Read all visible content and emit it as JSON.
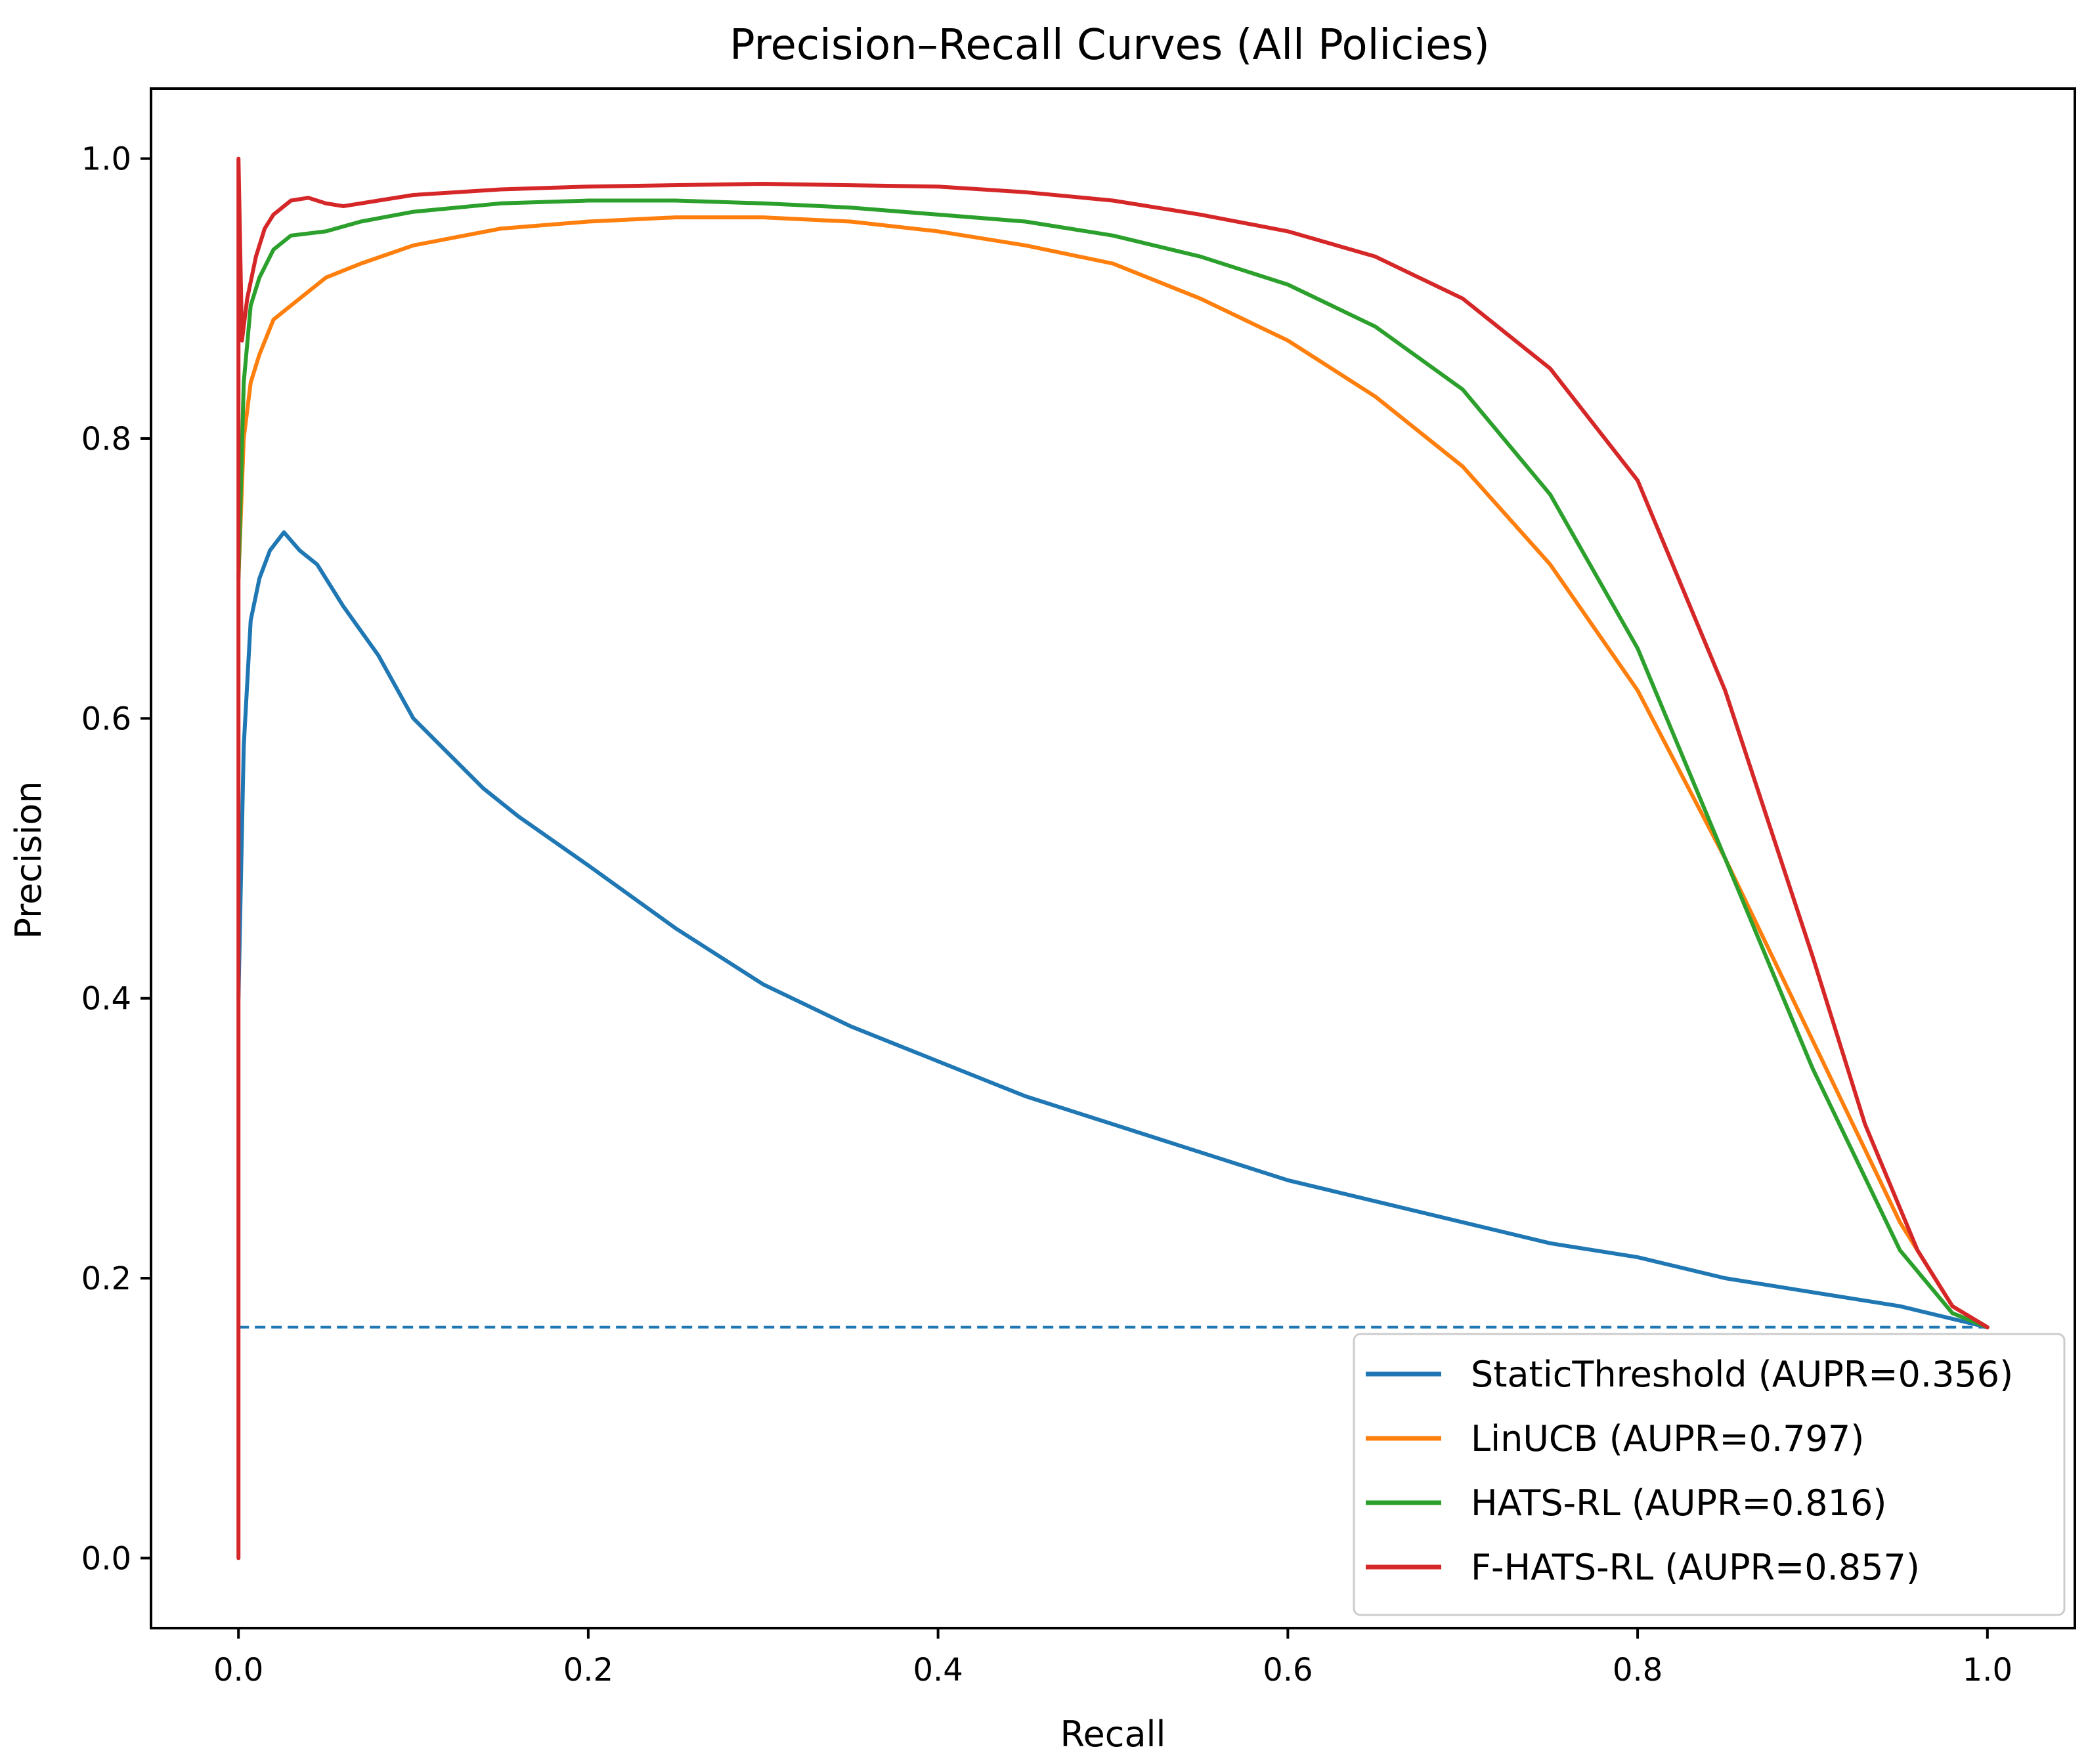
{
  "chart_data": {
    "type": "line",
    "title": "Precision–Recall Curves (All Policies)",
    "xlabel": "Recall",
    "ylabel": "Precision",
    "xlim": [
      -0.05,
      1.05
    ],
    "ylim": [
      -0.05,
      1.05
    ],
    "x_ticks": [
      0.0,
      0.2,
      0.4,
      0.6,
      0.8,
      1.0
    ],
    "x_tick_labels": [
      "0.0",
      "0.2",
      "0.4",
      "0.6",
      "0.8",
      "1.0"
    ],
    "y_ticks": [
      0.0,
      0.2,
      0.4,
      0.6,
      0.8,
      1.0
    ],
    "y_tick_labels": [
      "0.0",
      "0.2",
      "0.4",
      "0.6",
      "0.8",
      "1.0"
    ],
    "grid": false,
    "legend_position": "bottom-right",
    "baseline": {
      "y": 0.165,
      "x": [
        0.0,
        1.0
      ],
      "style": "dashed",
      "color": "#1f77b4"
    },
    "series": [
      {
        "name": "StaticThreshold",
        "legend": "StaticThreshold (AUPR=0.356)",
        "color": "#1f77b4",
        "x": [
          0.0,
          0.003,
          0.007,
          0.012,
          0.018,
          0.026,
          0.035,
          0.045,
          0.06,
          0.08,
          0.1,
          0.12,
          0.14,
          0.16,
          0.2,
          0.25,
          0.3,
          0.35,
          0.4,
          0.45,
          0.5,
          0.55,
          0.6,
          0.65,
          0.7,
          0.75,
          0.8,
          0.85,
          0.9,
          0.95,
          1.0
        ],
        "y": [
          0.4,
          0.58,
          0.67,
          0.7,
          0.72,
          0.733,
          0.72,
          0.71,
          0.68,
          0.645,
          0.6,
          0.575,
          0.55,
          0.53,
          0.495,
          0.45,
          0.41,
          0.38,
          0.355,
          0.33,
          0.31,
          0.29,
          0.27,
          0.255,
          0.24,
          0.225,
          0.215,
          0.2,
          0.19,
          0.18,
          0.165
        ]
      },
      {
        "name": "LinUCB",
        "legend": "LinUCB (AUPR=0.797)",
        "color": "#ff7f0e",
        "x": [
          0.0,
          0.003,
          0.007,
          0.012,
          0.02,
          0.03,
          0.05,
          0.07,
          0.1,
          0.15,
          0.2,
          0.25,
          0.3,
          0.35,
          0.4,
          0.45,
          0.5,
          0.55,
          0.6,
          0.65,
          0.7,
          0.75,
          0.8,
          0.85,
          0.9,
          0.95,
          0.98,
          1.0
        ],
        "y": [
          0.7,
          0.8,
          0.84,
          0.86,
          0.885,
          0.895,
          0.915,
          0.925,
          0.938,
          0.95,
          0.955,
          0.958,
          0.958,
          0.955,
          0.948,
          0.938,
          0.925,
          0.9,
          0.87,
          0.83,
          0.78,
          0.71,
          0.62,
          0.5,
          0.37,
          0.24,
          0.18,
          0.165
        ]
      },
      {
        "name": "HATS-RL",
        "legend": "HATS-RL (AUPR=0.816)",
        "color": "#2ca02c",
        "x": [
          0.0,
          0.003,
          0.007,
          0.012,
          0.02,
          0.03,
          0.05,
          0.07,
          0.1,
          0.15,
          0.2,
          0.25,
          0.3,
          0.35,
          0.4,
          0.45,
          0.5,
          0.55,
          0.6,
          0.65,
          0.7,
          0.75,
          0.8,
          0.85,
          0.9,
          0.95,
          0.98,
          1.0
        ],
        "y": [
          0.7,
          0.84,
          0.895,
          0.915,
          0.935,
          0.945,
          0.948,
          0.955,
          0.962,
          0.968,
          0.97,
          0.97,
          0.968,
          0.965,
          0.96,
          0.955,
          0.945,
          0.93,
          0.91,
          0.88,
          0.835,
          0.76,
          0.65,
          0.5,
          0.35,
          0.22,
          0.175,
          0.165
        ]
      },
      {
        "name": "F-HATS-RL",
        "legend": "F-HATS-RL (AUPR=0.857)",
        "color": "#d62728",
        "x": [
          0.0,
          0.0,
          0.002,
          0.005,
          0.01,
          0.015,
          0.02,
          0.03,
          0.04,
          0.05,
          0.06,
          0.08,
          0.1,
          0.15,
          0.2,
          0.3,
          0.4,
          0.45,
          0.5,
          0.55,
          0.6,
          0.65,
          0.7,
          0.75,
          0.8,
          0.85,
          0.9,
          0.93,
          0.96,
          0.98,
          1.0
        ],
        "y": [
          0.0,
          1.0,
          0.87,
          0.9,
          0.93,
          0.95,
          0.96,
          0.97,
          0.972,
          0.968,
          0.966,
          0.97,
          0.974,
          0.978,
          0.98,
          0.982,
          0.98,
          0.976,
          0.97,
          0.96,
          0.948,
          0.93,
          0.9,
          0.85,
          0.77,
          0.62,
          0.43,
          0.31,
          0.22,
          0.18,
          0.165
        ]
      }
    ]
  }
}
